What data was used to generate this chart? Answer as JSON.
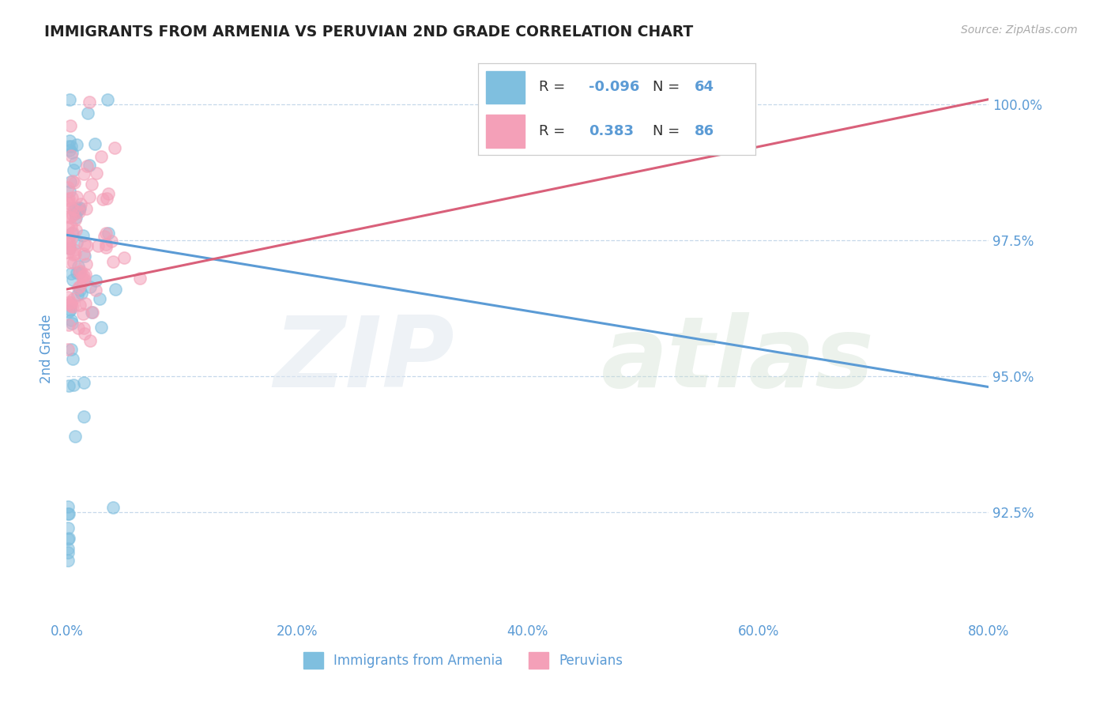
{
  "title": "IMMIGRANTS FROM ARMENIA VS PERUVIAN 2ND GRADE CORRELATION CHART",
  "source": "Source: ZipAtlas.com",
  "ylabel": "2nd Grade",
  "ylabel_right_ticks": [
    "100.0%",
    "97.5%",
    "95.0%",
    "92.5%"
  ],
  "ylabel_right_vals": [
    1.0,
    0.975,
    0.95,
    0.925
  ],
  "xlim": [
    0.0,
    0.8
  ],
  "ylim": [
    0.905,
    1.005
  ],
  "xticks": [
    0.0,
    0.2,
    0.4,
    0.6,
    0.8
  ],
  "xticklabels": [
    "0.0%",
    "20.0%",
    "40.0%",
    "60.0%",
    "80.0%"
  ],
  "legend_R_blue": "-0.096",
  "legend_N_blue": "64",
  "legend_R_pink": "0.383",
  "legend_N_pink": "86",
  "legend_label_blue": "Immigrants from Armenia",
  "legend_label_pink": "Peruvians",
  "blue_color": "#7fbfdf",
  "pink_color": "#f4a0b8",
  "trend_blue_color": "#5b9bd5",
  "trend_pink_color": "#d9607a",
  "background_color": "#ffffff",
  "grid_color": "#c0d4e8",
  "axis_color": "#5b9bd5",
  "title_color": "#222222",
  "trend_blue_x0": 0.0,
  "trend_blue_y0": 0.976,
  "trend_blue_x1": 0.8,
  "trend_blue_y1": 0.948,
  "trend_pink_x0": 0.0,
  "trend_pink_y0": 0.966,
  "trend_pink_x1": 0.8,
  "trend_pink_y1": 1.001
}
